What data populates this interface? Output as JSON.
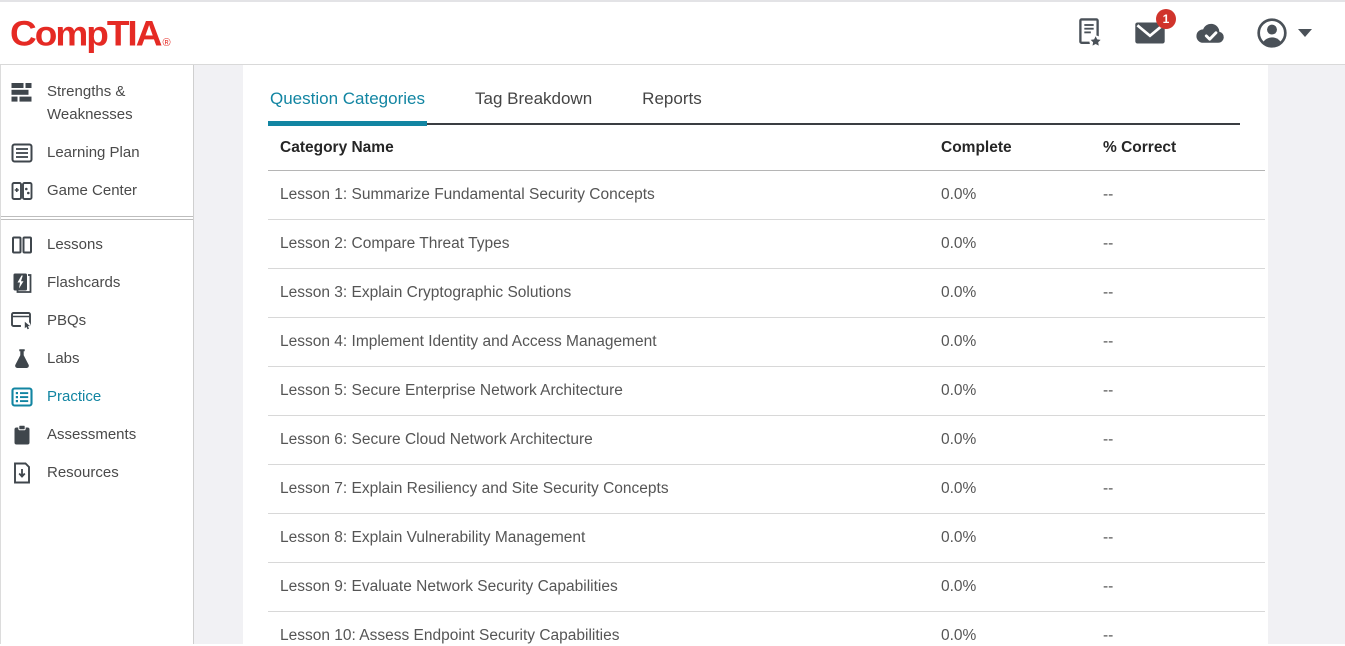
{
  "brand": {
    "logo_text": "CompTIA",
    "registered_mark": "®"
  },
  "colors": {
    "brand_red": "#e52a24",
    "accent_teal": "#1285a2",
    "badge_red": "#d0342c",
    "icon_gray": "#4a5158"
  },
  "header": {
    "mail_badge_count": "1",
    "icons": [
      "exam-notes-icon",
      "mail-icon",
      "cloud-check-icon",
      "account-icon",
      "caret-down-icon"
    ]
  },
  "sidebar": {
    "top_items": [
      {
        "label": "Strengths & Weaknesses",
        "icon": "strengths-weaknesses-icon"
      },
      {
        "label": "Learning Plan",
        "icon": "learning-plan-icon"
      },
      {
        "label": "Game Center",
        "icon": "game-center-icon"
      }
    ],
    "items": [
      {
        "label": "Lessons",
        "icon": "lessons-icon",
        "active": false
      },
      {
        "label": "Flashcards",
        "icon": "flashcards-icon",
        "active": false
      },
      {
        "label": "PBQs",
        "icon": "pbqs-icon",
        "active": false
      },
      {
        "label": "Labs",
        "icon": "labs-icon",
        "active": false
      },
      {
        "label": "Practice",
        "icon": "practice-icon",
        "active": true
      },
      {
        "label": "Assessments",
        "icon": "assessments-icon",
        "active": false
      },
      {
        "label": "Resources",
        "icon": "resources-icon",
        "active": false
      }
    ]
  },
  "main": {
    "tabs": [
      {
        "label": "Question Categories",
        "active": true
      },
      {
        "label": "Tag Breakdown",
        "active": false
      },
      {
        "label": "Reports",
        "active": false
      }
    ],
    "table": {
      "columns": [
        "Category Name",
        "Complete",
        "% Correct"
      ],
      "rows": [
        {
          "category": "Lesson 1: Summarize Fundamental Security Concepts",
          "complete": "0.0%",
          "correct": "--"
        },
        {
          "category": "Lesson 2: Compare Threat Types",
          "complete": "0.0%",
          "correct": "--"
        },
        {
          "category": "Lesson 3: Explain Cryptographic Solutions",
          "complete": "0.0%",
          "correct": "--"
        },
        {
          "category": "Lesson 4: Implement Identity and Access Management",
          "complete": "0.0%",
          "correct": "--"
        },
        {
          "category": "Lesson 5: Secure Enterprise Network Architecture",
          "complete": "0.0%",
          "correct": "--"
        },
        {
          "category": "Lesson 6: Secure Cloud Network Architecture",
          "complete": "0.0%",
          "correct": "--"
        },
        {
          "category": "Lesson 7: Explain Resiliency and Site Security Concepts",
          "complete": "0.0%",
          "correct": "--"
        },
        {
          "category": "Lesson 8: Explain Vulnerability Management",
          "complete": "0.0%",
          "correct": "--"
        },
        {
          "category": "Lesson 9: Evaluate Network Security Capabilities",
          "complete": "0.0%",
          "correct": "--"
        },
        {
          "category": "Lesson 10: Assess Endpoint Security Capabilities",
          "complete": "0.0%",
          "correct": "--"
        }
      ]
    }
  }
}
